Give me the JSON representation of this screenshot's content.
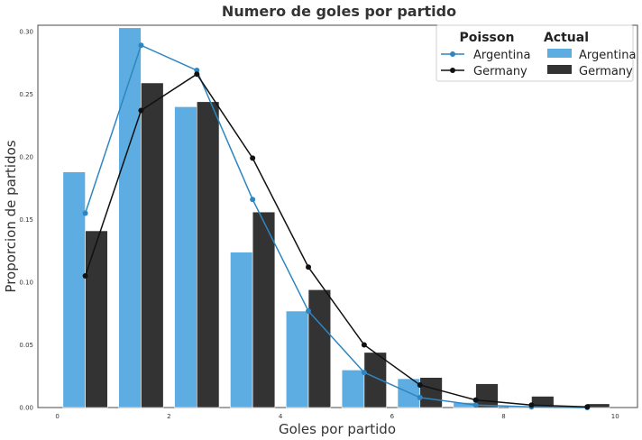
{
  "chart_data": {
    "type": "bar",
    "title": "Numero de goles por partido",
    "xlabel": "Goles por partido",
    "ylabel": "Proporcion de partidos",
    "xlim": [
      -0.35,
      10.4
    ],
    "ylim": [
      0,
      0.305
    ],
    "xticks": [
      0,
      2,
      4,
      6,
      8,
      10
    ],
    "yticks": [
      0.0,
      0.05,
      0.1,
      0.15,
      0.2,
      0.25,
      0.3
    ],
    "ytick_labels": [
      "0.00",
      "0.05",
      "0.10",
      "0.15",
      "0.20",
      "0.25",
      "0.30"
    ],
    "grid": false,
    "legend_position": "top-right",
    "legend": {
      "poisson_title": "Poisson",
      "actual_title": "Actual"
    },
    "categories": [
      0,
      1,
      2,
      3,
      4,
      5,
      6,
      7,
      8,
      9
    ],
    "series": [
      {
        "name": "Argentina",
        "kind": "bar",
        "color": "#5DADE2",
        "values": [
          0.188,
          0.303,
          0.24,
          0.124,
          0.077,
          0.03,
          0.023,
          0.004,
          0.001,
          0.0
        ]
      },
      {
        "name": "Germany",
        "kind": "bar",
        "color": "#333333",
        "values": [
          0.141,
          0.259,
          0.244,
          0.156,
          0.094,
          0.044,
          0.024,
          0.019,
          0.009,
          0.003
        ]
      }
    ],
    "poisson_series": [
      {
        "name": "Argentina",
        "kind": "line",
        "color": "#2E86C1",
        "x": [
          0.5,
          1.5,
          2.5,
          3.5,
          4.5,
          5.5,
          6.5,
          7.5,
          8.5,
          9.5
        ],
        "y": [
          0.155,
          0.289,
          0.269,
          0.166,
          0.077,
          0.028,
          0.008,
          0.002,
          0.0005,
          0.0
        ]
      },
      {
        "name": "Germany",
        "kind": "line",
        "color": "#111111",
        "x": [
          0.5,
          1.5,
          2.5,
          3.5,
          4.5,
          5.5,
          6.5,
          7.5,
          8.5,
          9.5
        ],
        "y": [
          0.105,
          0.237,
          0.266,
          0.199,
          0.112,
          0.05,
          0.018,
          0.006,
          0.002,
          0.0005
        ]
      }
    ]
  }
}
